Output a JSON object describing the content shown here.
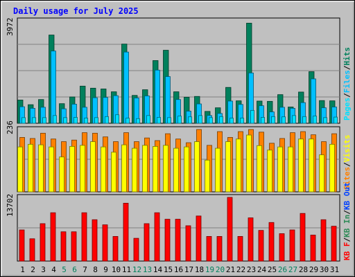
{
  "title": "Daily usage for July 2025",
  "colors": {
    "background": "#c0c0c0",
    "title": "#0000ff",
    "hits": "#00805c",
    "files": "#00c0ff",
    "pages": "#00e0ff",
    "visits": "#ffff00",
    "sites": "#ff8000",
    "kbin": "#2e8b57",
    "kbout": "#0040ff",
    "kbf": "#ff0000",
    "weekend": "#00805c",
    "weekday": "#000000"
  },
  "chart_data": [
    {
      "type": "bar",
      "panel": "top",
      "ymax_label": "3972",
      "ylim": [
        0,
        3972
      ],
      "legend": [
        "Pages",
        "Files",
        "Hits"
      ],
      "categories": [
        "1",
        "2",
        "3",
        "4",
        "5",
        "6",
        "7",
        "8",
        "9",
        "10",
        "11",
        "12",
        "13",
        "14",
        "15",
        "16",
        "17",
        "18",
        "19",
        "20",
        "21",
        "22",
        "23",
        "24",
        "25",
        "26",
        "27",
        "28",
        "29",
        "30",
        "31"
      ],
      "series": [
        {
          "name": "Hits",
          "values": [
            900,
            720,
            920,
            3420,
            760,
            1020,
            1440,
            1360,
            1330,
            1220,
            3070,
            1080,
            1300,
            2430,
            2830,
            1220,
            1010,
            1040,
            460,
            600,
            1390,
            870,
            3880,
            860,
            850,
            1110,
            630,
            1210,
            2000,
            880,
            870
          ]
        },
        {
          "name": "Files",
          "values": [
            640,
            580,
            620,
            2800,
            560,
            740,
            620,
            990,
            1000,
            1070,
            2760,
            980,
            1060,
            2060,
            1810,
            920,
            470,
            750,
            300,
            380,
            860,
            730,
            1950,
            680,
            440,
            620,
            580,
            800,
            1720,
            600,
            630
          ]
        },
        {
          "name": "Pages",
          "values": [
            220,
            220,
            220,
            300,
            220,
            230,
            200,
            220,
            260,
            330,
            200,
            180,
            300,
            230,
            220,
            280,
            250,
            300,
            220,
            260,
            200,
            200,
            500,
            230,
            260,
            250,
            300,
            260,
            280,
            220,
            240
          ]
        }
      ]
    },
    {
      "type": "bar",
      "panel": "middle",
      "ymax_label": "236",
      "ylim": [
        0,
        236
      ],
      "legend": [
        "Visits",
        "Sites"
      ],
      "categories": [
        "1",
        "2",
        "3",
        "4",
        "5",
        "6",
        "7",
        "8",
        "9",
        "10",
        "11",
        "12",
        "13",
        "14",
        "15",
        "16",
        "17",
        "18",
        "19",
        "20",
        "21",
        "22",
        "23",
        "24",
        "25",
        "26",
        "27",
        "28",
        "29",
        "30",
        "31"
      ],
      "series": [
        {
          "name": "Visits",
          "values": [
            170,
            180,
            178,
            170,
            132,
            172,
            176,
            190,
            170,
            150,
            178,
            165,
            176,
            172,
            176,
            165,
            170,
            190,
            120,
            165,
            190,
            200,
            215,
            175,
            158,
            170,
            170,
            200,
            200,
            140,
            180
          ]
        },
        {
          "name": "Sites",
          "values": [
            206,
            202,
            222,
            200,
            190,
            196,
            224,
            222,
            208,
            190,
            224,
            190,
            204,
            194,
            220,
            200,
            186,
            236,
            176,
            228,
            206,
            228,
            236,
            226,
            184,
            202,
            224,
            228,
            216,
            190,
            220
          ]
        }
      ]
    },
    {
      "type": "bar",
      "panel": "bottom",
      "ymax_label": "13702",
      "ylim": [
        0,
        13702
      ],
      "legend": [
        "KB F",
        "KB In",
        "KB Out"
      ],
      "categories": [
        "1",
        "2",
        "3",
        "4",
        "5",
        "6",
        "7",
        "8",
        "9",
        "10",
        "11",
        "12",
        "13",
        "14",
        "15",
        "16",
        "17",
        "18",
        "19",
        "20",
        "21",
        "22",
        "23",
        "24",
        "25",
        "26",
        "27",
        "28",
        "29",
        "30",
        "31"
      ],
      "series": [
        {
          "name": "KB F",
          "values": [
            6700,
            4800,
            8050,
            10400,
            6300,
            6300,
            10400,
            8900,
            7800,
            5300,
            12450,
            4900,
            8050,
            10400,
            9000,
            9000,
            7600,
            9700,
            5300,
            5300,
            13702,
            5300,
            9300,
            6600,
            8300,
            5900,
            6700,
            10250,
            5600,
            8900,
            7500
          ]
        }
      ]
    }
  ]
}
